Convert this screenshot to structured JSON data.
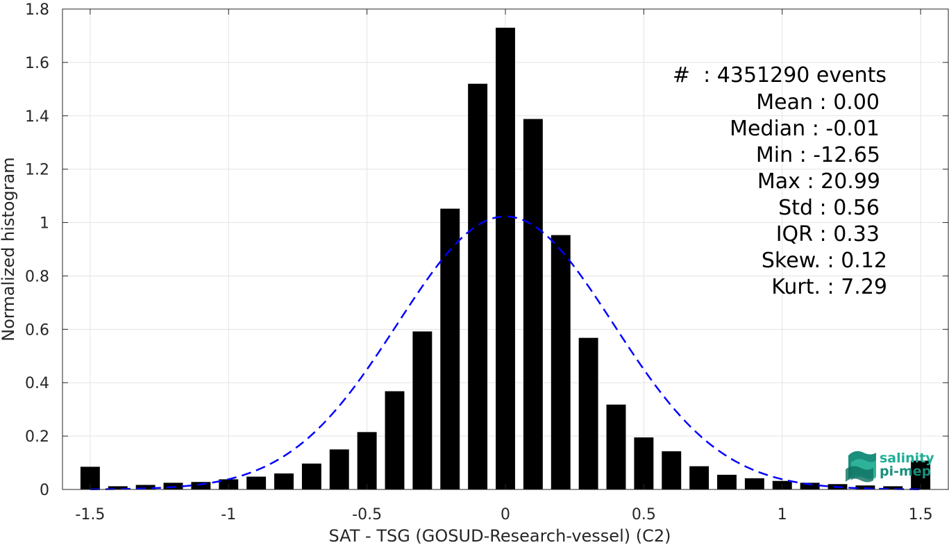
{
  "chart_data": {
    "type": "bar",
    "xlabel": "SAT - TSG (GOSUD-Research-vessel) (C2)",
    "ylabel": "Normalized histogram",
    "xlim": [
      -1.6,
      1.6
    ],
    "ylim": [
      0,
      1.8
    ],
    "xticks": [
      "-1.5",
      "-1",
      "-0.5",
      "0",
      "0.5",
      "1",
      "1.5"
    ],
    "xtick_values": [
      -1.5,
      -1,
      -0.5,
      0,
      0.5,
      1,
      1.5
    ],
    "yticks": [
      "0",
      "0.2",
      "0.4",
      "0.6",
      "0.8",
      "1",
      "1.2",
      "1.4",
      "1.6",
      "1.8"
    ],
    "ytick_values": [
      0,
      0.2,
      0.4,
      0.6,
      0.8,
      1,
      1.2,
      1.4,
      1.6,
      1.8
    ],
    "grid": true,
    "bar_color": "#000000",
    "bins": {
      "x": [
        -1.5,
        -1.4,
        -1.3,
        -1.2,
        -1.1,
        -1.0,
        -0.9,
        -0.8,
        -0.7,
        -0.6,
        -0.5,
        -0.4,
        -0.3,
        -0.2,
        -0.1,
        0.0,
        0.1,
        0.2,
        0.3,
        0.4,
        0.5,
        0.6,
        0.7,
        0.8,
        0.9,
        1.0,
        1.1,
        1.2,
        1.3,
        1.4,
        1.5
      ],
      "values": [
        0.085,
        0.012,
        0.017,
        0.025,
        0.028,
        0.038,
        0.048,
        0.06,
        0.097,
        0.15,
        0.215,
        0.368,
        0.592,
        1.052,
        1.52,
        1.73,
        1.388,
        0.953,
        0.568,
        0.318,
        0.195,
        0.143,
        0.087,
        0.055,
        0.042,
        0.032,
        0.025,
        0.02,
        0.015,
        0.012,
        0.108
      ]
    },
    "fit_curve": {
      "type": "gaussian",
      "mean": 0.0,
      "std": 0.39,
      "peak": 1.023,
      "color": "#0000ff",
      "style": "dashed"
    },
    "annotations": [
      "#  : 4351290 events",
      "Mean : 0.00",
      "Median : -0.01",
      "Min : -12.65",
      "Max : 20.99",
      "Std : 0.56",
      "IQR : 0.33",
      "Skew. : 0.12",
      "Kurt. : 7.29"
    ]
  },
  "logo": {
    "line1": "salinity",
    "line2": "pi-mep",
    "color": "#1fae96"
  }
}
